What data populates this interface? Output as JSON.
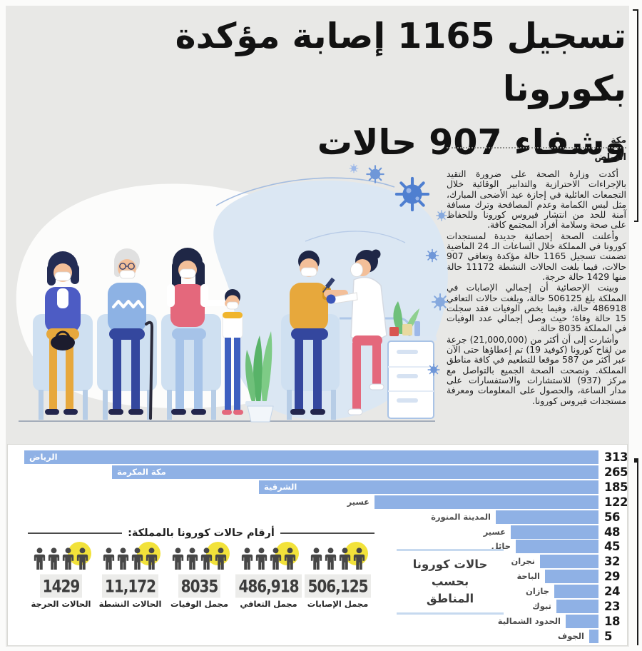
{
  "page": {
    "background_color": "#e8e8e6",
    "bar_blue": "#8fb1e5",
    "accent_yellow": "#f2e23a"
  },
  "headline": {
    "line1": "تسجيل 1165 إصابة مؤكدة بكورونا",
    "line2": "وشفاء 907 حالات"
  },
  "masthead": {
    "paper_name": "مكة",
    "byline_city": "الرياض"
  },
  "article": {
    "paragraphs": [
      "أكدت وزارة الصحة على ضرورة التقيد بالإجراءات الاحترازية والتدابير الوقائية خلال التجمعات العائلية في إجازة عيد الأضحى المبارك، مثل لبس الكمامة وعدم المصافحة وترك مسافة آمنة للحد من انتشار فيروس كورونا وللحفاظ على صحة وسلامة أفراد المجتمع كافة.",
      "وأعلنت الصحة إحصائية جديدة لمستجدات كورونا في المملكة خلال الساعات الـ 24 الماضية تضمنت تسجيل 1165 حالة مؤكدة وتعافي 907 حالات، فيما بلغت الحالات النشطة 11172 حالة منها 1429 حالة حرجة.",
      "وبينت الإحصائية أن إجمالي الإصابات في المملكة بلغ 506125 حالة، وبلغت حالات التعافي 486918 حالة، وفيما يخص الوفيات فقد سجلت 15 حالة وفاة؛ حيث وصل إجمالي عدد الوفيات في المملكة 8035 حالة.",
      "وأشارت إلى أن أكثر من (21,000,000) جرعة من لقاح كورونا (كوفيد 19) تم إعطاؤها حتى الآن عبر أكثر من 587 موقعا للتطعيم في كافة مناطق المملكة. ونصحت الصحة الجميع بالتواصل مع مركز (937) للاستشارات والاستفسارات على مدار الساعة، والحصول على المعلومات ومعرفة مستجدات فيروس كورونا."
    ]
  },
  "infographic": {
    "stats_heading": "أرقام حالات كورونا بالمملكة:",
    "stats_left_to_right": [
      {
        "value": "1429",
        "label": "الحالات الحرجة"
      },
      {
        "value": "11,172",
        "label": "الحالات النشطة"
      },
      {
        "value": "8035",
        "label": "مجمل الوفيات"
      },
      {
        "value": "486,918",
        "label": "مجمل التعافي"
      },
      {
        "value": "506,125",
        "label": "مجمل الإصابات"
      }
    ],
    "chart_title_lines": [
      "حالات كورونا",
      "بحسب",
      "المناطق"
    ],
    "icons": {
      "stat_group": "people-group-icon",
      "scene": "vaccination-waiting-room-illustration",
      "virus": "virus-icon"
    }
  },
  "chart_data": {
    "type": "bar",
    "orientation": "horizontal_rtl",
    "title": "حالات كورونا بحسب المناطق",
    "categories": [
      "الرياض",
      "مكة المكرمة",
      "الشرقية",
      "عسير",
      "المدينة المنورة",
      "عسير",
      "حائل",
      "نجران",
      "الباحة",
      "جازان",
      "تبوك",
      "الحدود الشمالية",
      "الجوف"
    ],
    "values": [
      313,
      265,
      185,
      122,
      56,
      48,
      45,
      32,
      29,
      24,
      23,
      18,
      5
    ],
    "xlim": [
      0,
      313
    ],
    "bar_color": "#8fb1e5",
    "value_labels_shown": true,
    "grid": false,
    "legend": false
  }
}
